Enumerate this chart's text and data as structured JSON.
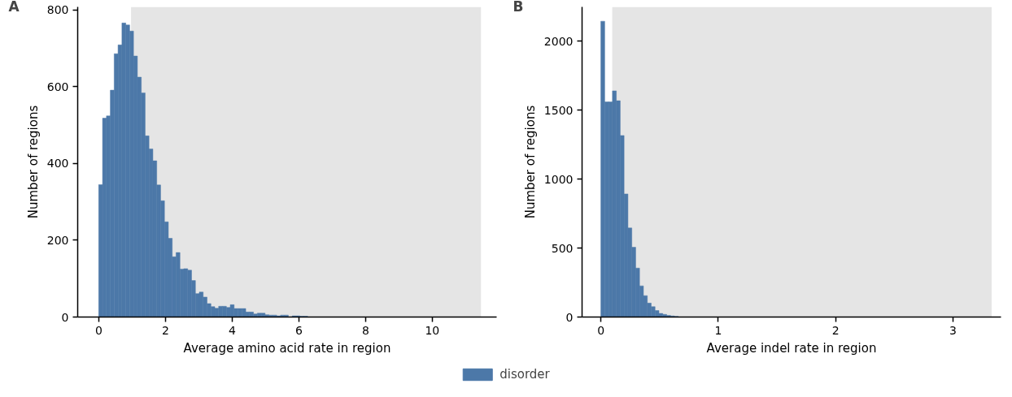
{
  "chart_data": [
    {
      "type": "histogram",
      "title": "A",
      "xlabel": "Average amino acid rate in region",
      "ylabel": "Number of regions",
      "bins": [
        0,
        0.116,
        0.232,
        0.348,
        0.464,
        0.58,
        0.696,
        0.812,
        0.928,
        1.044,
        1.16,
        1.276,
        1.392,
        1.508,
        1.624,
        1.74,
        1.856,
        1.972,
        2.088,
        2.204,
        2.32,
        2.436,
        2.552,
        2.668,
        2.784,
        2.9,
        3.016,
        3.132,
        3.248,
        3.364,
        3.48,
        3.596,
        3.712,
        3.828,
        3.944,
        4.06,
        4.176,
        4.292,
        4.408,
        4.524,
        4.64,
        4.756,
        4.872,
        4.988,
        5.104,
        5.22,
        5.336,
        5.452,
        5.568,
        5.684,
        5.8,
        5.916,
        6.032,
        6.148,
        6.264,
        6.38,
        6.496,
        6.612,
        6.728,
        6.844
      ],
      "series": [
        {
          "name": "disorder",
          "color": "#4c78a8",
          "values": [
            345,
            518,
            524,
            591,
            686,
            709,
            766,
            761,
            745,
            680,
            625,
            584,
            472,
            438,
            407,
            344,
            303,
            248,
            205,
            157,
            168,
            125,
            126,
            122,
            95,
            61,
            65,
            52,
            35,
            27,
            23,
            28,
            28,
            25,
            32,
            22,
            22,
            22,
            13,
            13,
            8,
            10,
            10,
            6,
            5,
            5,
            3,
            5,
            5,
            null,
            3,
            3,
            2,
            2,
            null,
            0,
            0,
            null,
            null
          ]
        }
      ],
      "bands": [
        {
          "axis": "x",
          "from": 0.97,
          "to": 11.46,
          "color": "#e5e5e5"
        }
      ],
      "xlim": [
        -0.63,
        11.93
      ],
      "ylim": [
        0,
        808
      ],
      "xticks": [
        0,
        2,
        4,
        6,
        8,
        10
      ],
      "yticks": [
        0,
        200,
        400,
        600,
        800
      ],
      "grid": false,
      "legend": "bottom"
    },
    {
      "type": "histogram",
      "title": "B",
      "xlabel": "Average indel rate in region",
      "ylabel": "Number of regions",
      "bins": [
        0,
        0.033,
        0.066,
        0.099,
        0.132,
        0.165,
        0.198,
        0.231,
        0.264,
        0.297,
        0.33,
        0.363,
        0.396,
        0.429,
        0.462,
        0.495,
        0.528,
        0.561,
        0.594,
        0.627,
        0.66
      ],
      "series": [
        {
          "color": "#4c78a8",
          "values": [
            2146,
            1561,
            1561,
            1641,
            1569,
            1317,
            893,
            646,
            506,
            355,
            226,
            155,
            101,
            75,
            47,
            26,
            19,
            12,
            8,
            5
          ]
        }
      ],
      "bands": [
        {
          "axis": "x",
          "from": 0.097,
          "to": 3.33,
          "color": "#e5e5e5"
        }
      ],
      "xlim": [
        -0.16,
        3.41
      ],
      "ylim": [
        0,
        2250
      ],
      "xticks": [
        0,
        1,
        2,
        3
      ],
      "yticks": [
        0,
        500,
        1000,
        1500,
        2000
      ],
      "grid": false
    }
  ]
}
